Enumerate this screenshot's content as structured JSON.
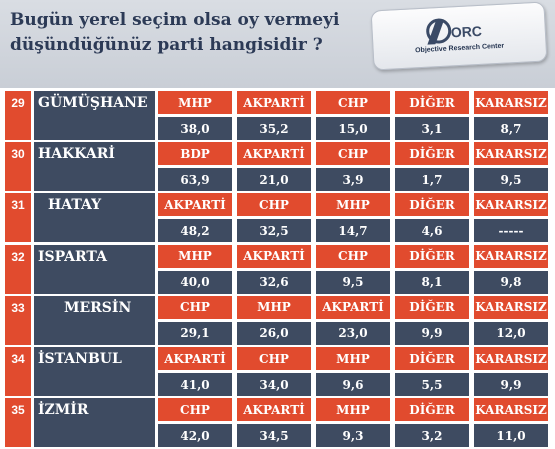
{
  "header": {
    "title_line1": "Bugün yerel seçim olsa oy vermeyi",
    "title_line2": "düşündüğünüz  parti hangisidir ?",
    "logo_mark": "ORC",
    "logo_text": "Objective Research Center"
  },
  "colors": {
    "party_cell": "#e14b2e",
    "value_cell": "#3e4b61",
    "header_bg": "#d9dde3",
    "title_text": "#2c3a56"
  },
  "chart_data": {
    "type": "table",
    "rows": [
      {
        "num": "29",
        "city": "GÜMÜŞHANE",
        "parties": [
          "MHP",
          "AKPARTİ",
          "CHP",
          "DİĞER",
          "KARARSIZ"
        ],
        "values": [
          "38,0",
          "35,2",
          "15,0",
          "3,1",
          "8,7"
        ]
      },
      {
        "num": "30",
        "city": "HAKKARİ",
        "parties": [
          "BDP",
          "AKPARTİ",
          "CHP",
          "DİĞER",
          "KARARSIZ"
        ],
        "values": [
          "63,9",
          "21,0",
          "3,9",
          "1,7",
          "9,5"
        ]
      },
      {
        "num": "31",
        "city": "HATAY",
        "parties": [
          "AKPARTİ",
          "CHP",
          "MHP",
          "DİĞER",
          "KARARSIZ"
        ],
        "values": [
          "48,2",
          "32,5",
          "14,7",
          "4,6",
          "-----"
        ]
      },
      {
        "num": "32",
        "city": "ISPARTA",
        "parties": [
          "MHP",
          "AKPARTİ",
          "CHP",
          "DİĞER",
          "KARARSIZ"
        ],
        "values": [
          "40,0",
          "32,6",
          "9,5",
          "8,1",
          "9,8"
        ]
      },
      {
        "num": "33",
        "city": "MERSİN",
        "parties": [
          "CHP",
          "MHP",
          "AKPARTİ",
          "DİĞER",
          "KARARSIZ"
        ],
        "values": [
          "29,1",
          "26,0",
          "23,0",
          "9,9",
          "12,0"
        ]
      },
      {
        "num": "34",
        "city": "İSTANBUL",
        "parties": [
          "AKPARTİ",
          "CHP",
          "MHP",
          "DİĞER",
          "KARARSIZ"
        ],
        "values": [
          "41,0",
          "34,0",
          "9,6",
          "5,5",
          "9,9"
        ]
      },
      {
        "num": "35",
        "city": "İZMİR",
        "parties": [
          "CHP",
          "AKPARTİ",
          "MHP",
          "DİĞER",
          "KARARSIZ"
        ],
        "values": [
          "42,0",
          "34,5",
          "9,3",
          "3,2",
          "11,0"
        ]
      }
    ]
  }
}
